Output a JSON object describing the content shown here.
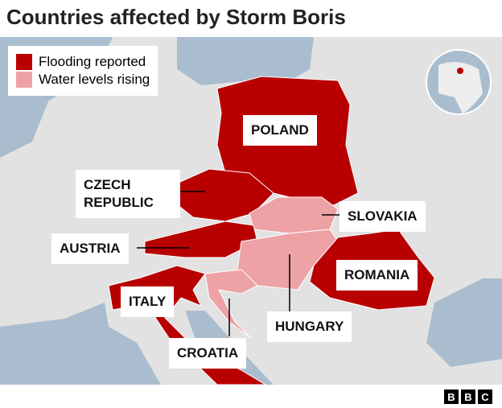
{
  "title": "Countries affected by Storm Boris",
  "legend": [
    {
      "label": "Flooding reported",
      "color": "#b80000"
    },
    {
      "label": "Water levels rising",
      "color": "#eda2a5"
    }
  ],
  "labels": [
    "POLAND",
    "CZECH REPUBLIC",
    "SLOVAKIA",
    "AUSTRIA",
    "ROMANIA",
    "ITALY",
    "HUNGARY",
    "CROATIA"
  ],
  "logo": [
    "B",
    "B",
    "C"
  ]
}
